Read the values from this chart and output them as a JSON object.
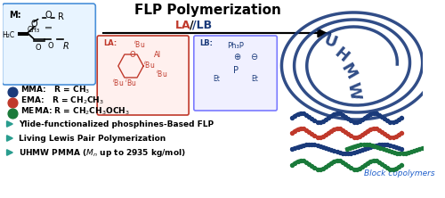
{
  "title": "FLP Polymerization",
  "la_lb": "LA/LB",
  "bg_color": "#ffffff",
  "blue_color": "#1a3a7a",
  "red_color": "#c0392b",
  "green_color": "#1a7a3a",
  "teal_color": "#2a9d8f",
  "bullet_texts": [
    "Ylide-functionalized phosphines-Based FLP",
    "Living Lewis Pair Polymerization",
    "UHMW PMMA (ᵀₙ up to 2935 kg/mol)"
  ],
  "mma_text": "MMA:   R = CH₃",
  "ema_text": "EMA:   R = CH₂CH₃",
  "mema_text": "MEMA: R = CH₂CH₃OCH₃",
  "block_copolymers_text": "Block copolymers",
  "uhmw_text": "U\nH\nM\nW"
}
